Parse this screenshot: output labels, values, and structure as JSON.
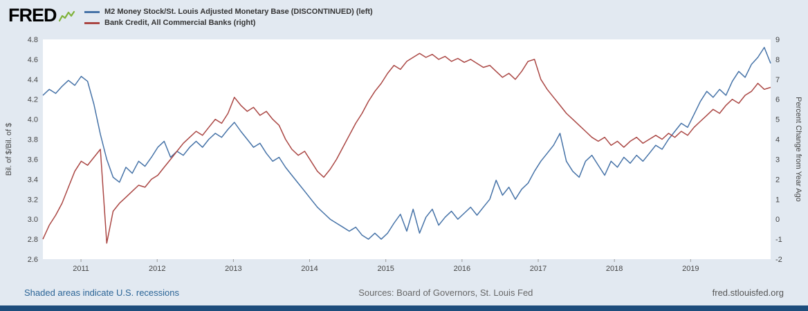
{
  "header": {
    "logo_text": "FRED",
    "legend": [
      {
        "label": "M2 Money Stock/St. Louis Adjusted Monetary Base (DISCONTINUED) (left)",
        "color": "#4572a7"
      },
      {
        "label": "Bank Credit, All Commercial Banks (right)",
        "color": "#aa4643"
      }
    ]
  },
  "footer": {
    "recession_note": "Shaded areas indicate U.S. recessions",
    "sources": "Sources: Board of Governors, St. Louis Fed",
    "site": "fred.stlouisfed.org"
  },
  "colors": {
    "page_background": "#e2e9f1",
    "footer_bar": "#1d4d7c",
    "link": "#2a6496",
    "series_left": "#4572a7",
    "series_right": "#aa4643"
  },
  "chart_data": {
    "type": "line",
    "title": "",
    "grid": false,
    "legend_position": "top-left",
    "x_axis": {
      "min": 2010.5,
      "max": 2020.05,
      "ticks": [
        2011,
        2012,
        2013,
        2014,
        2015,
        2016,
        2017,
        2018,
        2019
      ]
    },
    "left_axis": {
      "label": "Bil. of $/Bil. of $",
      "min": 2.6,
      "max": 4.8,
      "decimals": 1,
      "ticks": [
        2.6,
        2.8,
        3.0,
        3.2,
        3.4,
        3.6,
        3.8,
        4.0,
        4.2,
        4.4,
        4.6,
        4.8
      ]
    },
    "right_axis": {
      "label": "Percent Change from Year Ago",
      "min": -2,
      "max": 9,
      "decimals": 0,
      "ticks": [
        -2,
        -1,
        0,
        1,
        2,
        3,
        4,
        5,
        6,
        7,
        8,
        9
      ]
    },
    "series": [
      {
        "name": "M2 Money Stock/St. Louis Adjusted Monetary Base (DISCONTINUED)",
        "axis": "left",
        "color": "#4572a7",
        "x_start": 2010.5,
        "x_end": 2020.05,
        "sampling": "approx monthly, evenly spaced",
        "values": [
          4.24,
          4.3,
          4.26,
          4.33,
          4.39,
          4.34,
          4.43,
          4.38,
          4.15,
          3.85,
          3.6,
          3.42,
          3.37,
          3.52,
          3.46,
          3.58,
          3.53,
          3.62,
          3.72,
          3.78,
          3.62,
          3.68,
          3.64,
          3.72,
          3.78,
          3.72,
          3.8,
          3.86,
          3.82,
          3.9,
          3.97,
          3.88,
          3.8,
          3.72,
          3.76,
          3.66,
          3.58,
          3.62,
          3.52,
          3.44,
          3.36,
          3.28,
          3.2,
          3.12,
          3.06,
          3.0,
          2.96,
          2.92,
          2.88,
          2.92,
          2.84,
          2.8,
          2.86,
          2.8,
          2.86,
          2.96,
          3.05,
          2.88,
          3.1,
          2.86,
          3.02,
          3.1,
          2.94,
          3.02,
          3.08,
          3.0,
          3.06,
          3.12,
          3.04,
          3.12,
          3.2,
          3.39,
          3.24,
          3.32,
          3.2,
          3.3,
          3.36,
          3.48,
          3.58,
          3.66,
          3.74,
          3.86,
          3.58,
          3.48,
          3.42,
          3.58,
          3.64,
          3.54,
          3.44,
          3.58,
          3.52,
          3.62,
          3.56,
          3.64,
          3.58,
          3.66,
          3.74,
          3.7,
          3.8,
          3.88,
          3.96,
          3.92,
          4.05,
          4.18,
          4.28,
          4.22,
          4.3,
          4.24,
          4.38,
          4.48,
          4.42,
          4.55,
          4.62,
          4.72,
          4.56
        ]
      },
      {
        "name": "Bank Credit, All Commercial Banks",
        "axis": "right",
        "color": "#aa4643",
        "x_start": 2010.5,
        "x_end": 2020.05,
        "sampling": "approx monthly, evenly spaced",
        "values": [
          -1.0,
          -0.3,
          0.2,
          0.8,
          1.6,
          2.4,
          2.9,
          2.7,
          3.1,
          3.5,
          -1.2,
          0.4,
          0.8,
          1.1,
          1.4,
          1.7,
          1.6,
          2.0,
          2.2,
          2.6,
          3.0,
          3.4,
          3.8,
          4.1,
          4.4,
          4.2,
          4.6,
          5.0,
          4.8,
          5.3,
          6.1,
          5.7,
          5.4,
          5.6,
          5.2,
          5.4,
          5.0,
          4.7,
          4.0,
          3.5,
          3.2,
          3.4,
          2.9,
          2.4,
          2.1,
          2.5,
          3.0,
          3.6,
          4.2,
          4.8,
          5.3,
          5.9,
          6.4,
          6.8,
          7.3,
          7.7,
          7.5,
          7.9,
          8.1,
          8.3,
          8.1,
          8.25,
          8.0,
          8.15,
          7.9,
          8.05,
          7.85,
          8.0,
          7.8,
          7.6,
          7.7,
          7.4,
          7.1,
          7.3,
          7.0,
          7.4,
          7.9,
          8.0,
          7.0,
          6.5,
          6.1,
          5.7,
          5.3,
          5.0,
          4.7,
          4.4,
          4.1,
          3.9,
          4.1,
          3.7,
          3.9,
          3.6,
          3.9,
          4.1,
          3.8,
          4.0,
          4.2,
          4.0,
          4.3,
          4.1,
          4.4,
          4.2,
          4.6,
          4.9,
          5.2,
          5.5,
          5.3,
          5.7,
          6.0,
          5.8,
          6.2,
          6.4,
          6.8,
          6.5,
          6.6
        ]
      }
    ]
  }
}
